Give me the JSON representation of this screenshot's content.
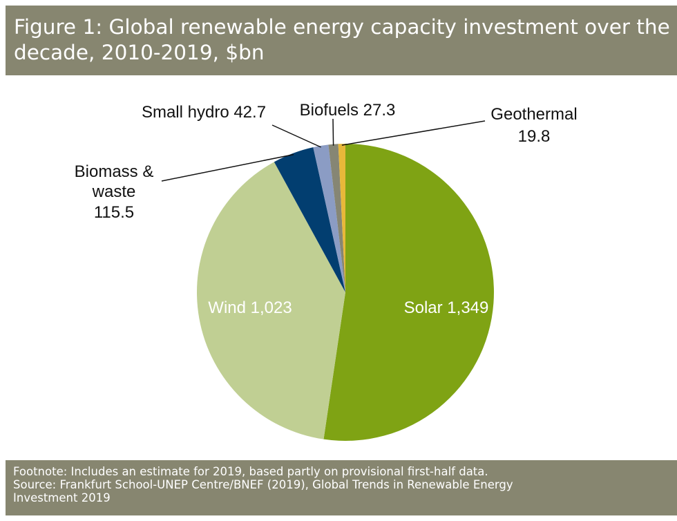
{
  "title": "Figure 1: Global renewable energy capacity investment over the decade, 2010-2019, $bn",
  "footnote": "Footnote: Includes an estimate for 2019, based partly on provisional first-half data.",
  "source": "Source: Frankfurt School-UNEP Centre/BNEF (2019), Global Trends in Renewable Energy Investment 2019",
  "colors": {
    "header_band": "#878670",
    "Solar": "#7fa314",
    "Wind": "#c0cf93",
    "Biomass & waste": "#023e70",
    "Small hydro": "#8b9cc4",
    "Biofuels": "#868674",
    "Geothermal": "#e8b83a"
  },
  "chart_data": {
    "type": "pie",
    "title": "Figure 1: Global renewable energy capacity investment over the decade, 2010-2019, $bn",
    "start_angle_deg": 0,
    "direction": "clockwise",
    "slices": [
      {
        "label": "Solar",
        "value": 1349,
        "value_text": "1,349",
        "color": "#7fa314",
        "label_position": "inside"
      },
      {
        "label": "Wind",
        "value": 1023,
        "value_text": "1,023",
        "color": "#c0cf93",
        "label_position": "inside"
      },
      {
        "label": "Biomass & waste",
        "label_lines": [
          "Biomass &",
          "waste"
        ],
        "value": 115.5,
        "value_text": "115.5",
        "color": "#023e70",
        "label_position": "outside"
      },
      {
        "label": "Small hydro",
        "value": 42.7,
        "value_text": "42.7",
        "color": "#8b9cc4",
        "label_position": "outside"
      },
      {
        "label": "Biofuels",
        "value": 27.3,
        "value_text": "27.3",
        "color": "#868674",
        "label_position": "outside"
      },
      {
        "label": "Geothermal",
        "value": 19.8,
        "value_text": "19.8",
        "color": "#e8b83a",
        "label_position": "outside"
      }
    ]
  }
}
